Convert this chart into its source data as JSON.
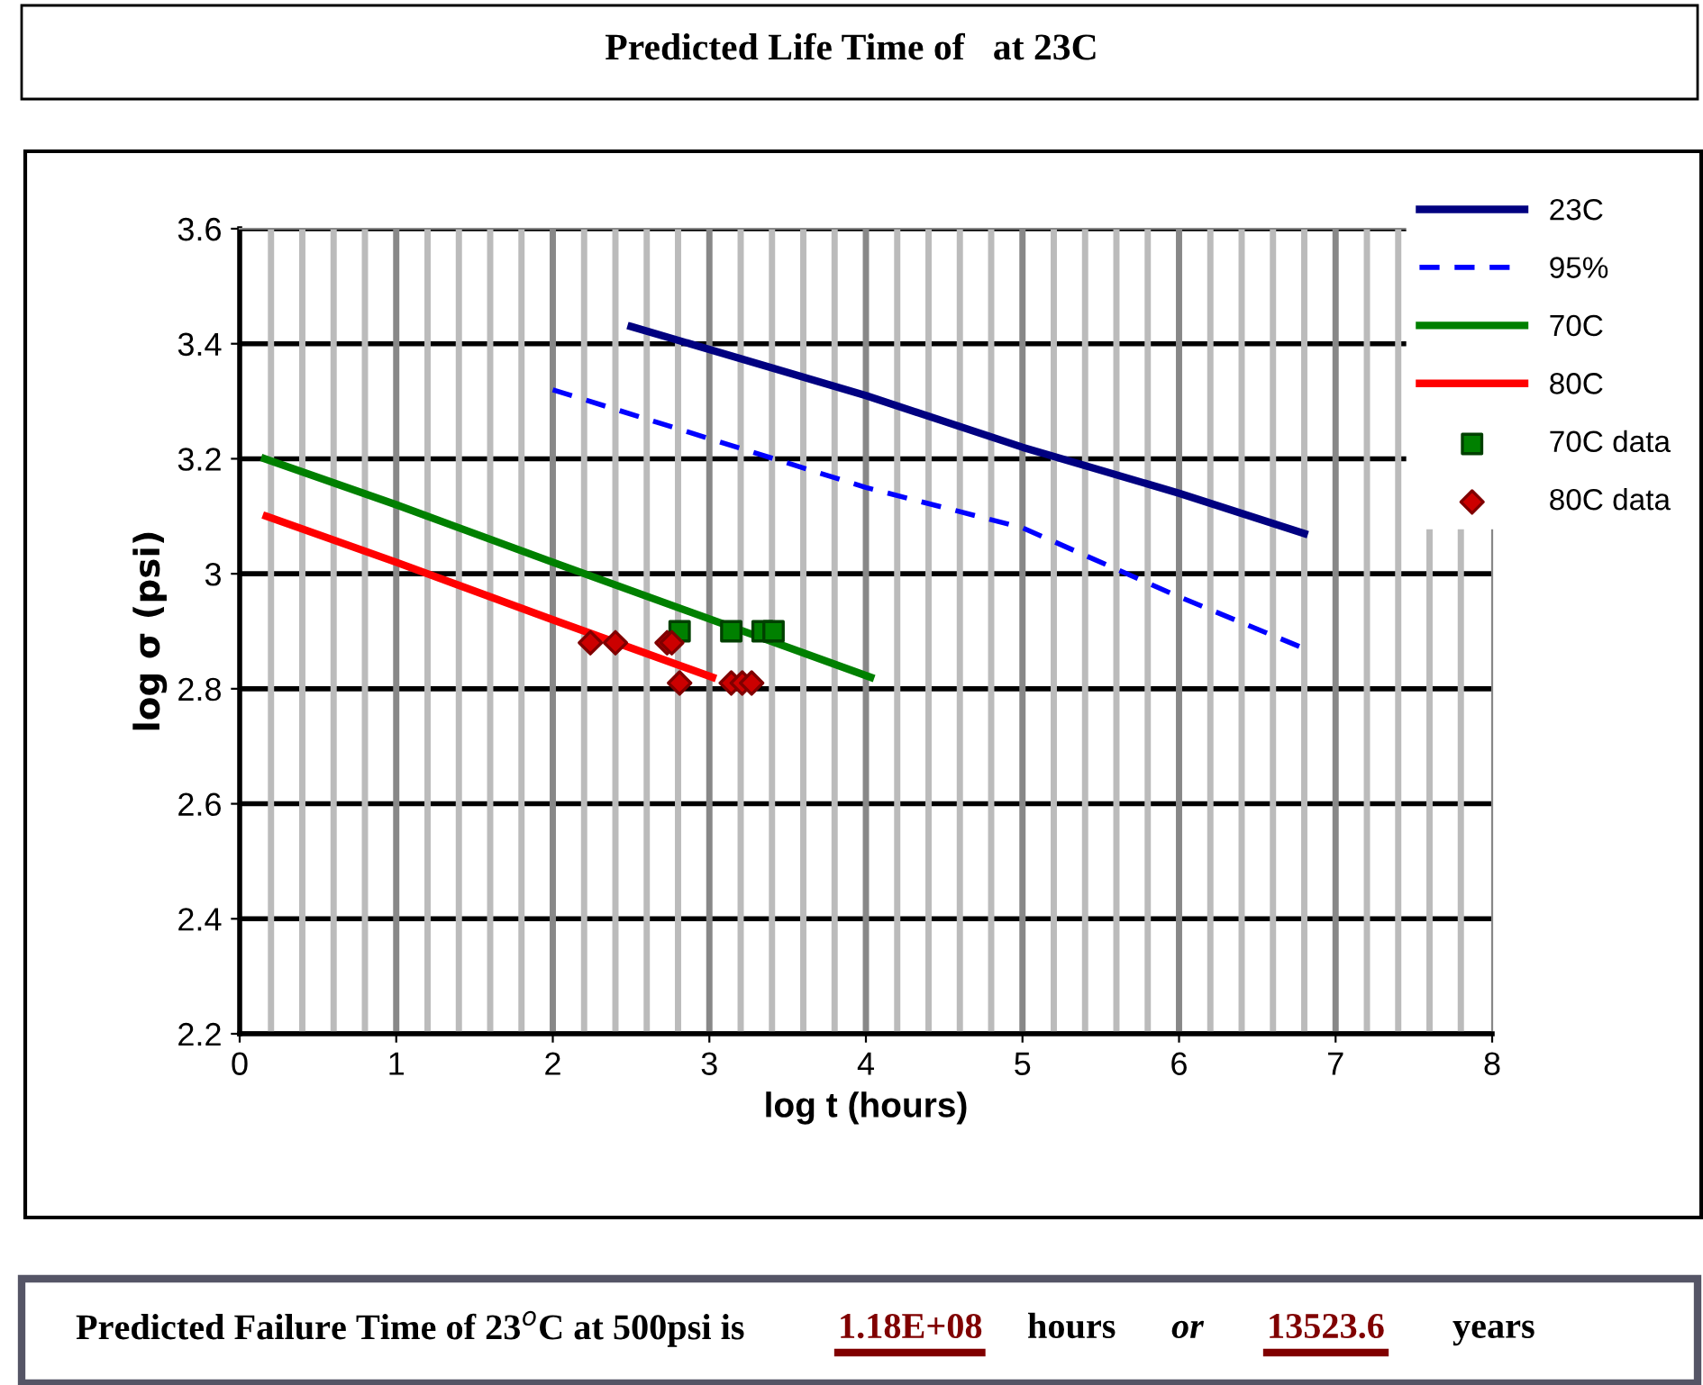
{
  "chart_data": {
    "type": "line",
    "title": "Predicted Life Time of   at 23C",
    "xlabel": "log t (hours)",
    "ylabel": "log σ (psi)",
    "xlim": [
      0,
      8
    ],
    "xticks": [
      0,
      1,
      2,
      3,
      4,
      5,
      6,
      7,
      8
    ],
    "ylim": [
      2.2,
      3.6
    ],
    "yticks": [
      2.2,
      2.4,
      2.6,
      2.8,
      3,
      3.2,
      3.4,
      3.6
    ],
    "grid": true,
    "legend": "top right",
    "series": [
      {
        "name": "23C",
        "color": "#000080",
        "x": [
          2.5,
          4,
          5,
          6,
          6.8
        ],
        "values": [
          3.43,
          3.31,
          3.22,
          3.14,
          3.07
        ]
      },
      {
        "name": "95%",
        "color": "#0000ff",
        "line_style": "dashed",
        "x": [
          2.0,
          4,
          5,
          6,
          6.8
        ],
        "values": [
          3.32,
          3.15,
          3.08,
          2.96,
          2.87
        ]
      },
      {
        "name": "70C",
        "color": "#008000",
        "x": [
          0.16,
          1,
          2,
          4.03
        ],
        "values": [
          3.2,
          3.12,
          3.02,
          2.82
        ]
      },
      {
        "name": "80C",
        "color": "#ff0000",
        "x": [
          0.17,
          1,
          2,
          3.02
        ],
        "values": [
          3.1,
          3.02,
          2.92,
          2.82
        ]
      },
      {
        "name": "70C data",
        "type": "scatter",
        "marker": "square",
        "color": "#008000",
        "x": [
          2.81,
          3.14,
          3.34,
          3.41
        ],
        "values": [
          2.9,
          2.9,
          2.9,
          2.9
        ]
      },
      {
        "name": "80C data",
        "type": "scatter",
        "marker": "diamond",
        "color": "#cc0000",
        "x": [
          2.24,
          2.4,
          2.73,
          2.76,
          2.81,
          3.14,
          3.21,
          3.27
        ],
        "values": [
          2.88,
          2.88,
          2.88,
          2.88,
          2.81,
          2.81,
          2.81,
          2.81
        ]
      }
    ],
    "annotations": [
      "Predicted Failure Time of 23$^{o}$C at 500psi is",
      "1.18E+08",
      "hours",
      "or",
      "13523.6",
      "years"
    ]
  }
}
